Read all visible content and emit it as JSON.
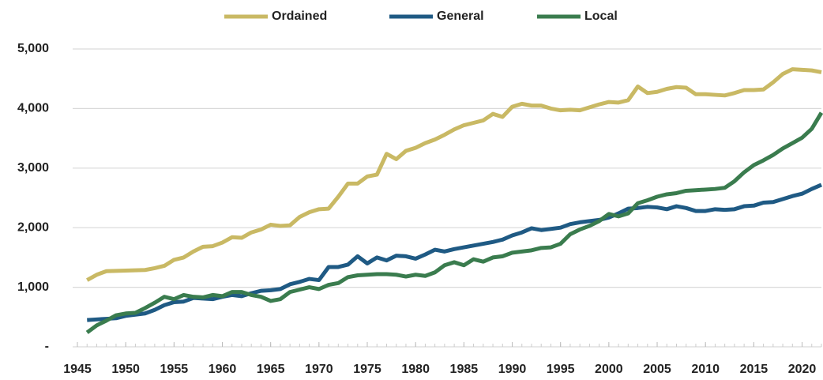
{
  "chart_data": {
    "type": "line",
    "legend": "top",
    "grid": true,
    "x": [
      1946,
      1947,
      1948,
      1949,
      1950,
      1951,
      1952,
      1953,
      1954,
      1955,
      1956,
      1957,
      1958,
      1959,
      1960,
      1961,
      1962,
      1963,
      1964,
      1965,
      1966,
      1967,
      1968,
      1969,
      1970,
      1971,
      1972,
      1973,
      1974,
      1975,
      1976,
      1977,
      1978,
      1979,
      1980,
      1981,
      1982,
      1983,
      1984,
      1985,
      1986,
      1987,
      1988,
      1989,
      1990,
      1991,
      1992,
      1993,
      1994,
      1995,
      1996,
      1997,
      1998,
      1999,
      2000,
      2001,
      2002,
      2003,
      2004,
      2005,
      2006,
      2007,
      2008,
      2009,
      2010,
      2011,
      2012,
      2013,
      2014,
      2015,
      2016,
      2017,
      2018,
      2019,
      2020,
      2021,
      2022
    ],
    "series": [
      {
        "name": "Ordained",
        "color": "#c9b964",
        "values": [
          1120,
          1210,
          1270,
          1275,
          1280,
          1285,
          1290,
          1320,
          1360,
          1460,
          1500,
          1600,
          1680,
          1690,
          1750,
          1840,
          1830,
          1920,
          1970,
          2050,
          2030,
          2040,
          2180,
          2260,
          2310,
          2320,
          2520,
          2740,
          2740,
          2860,
          2890,
          3240,
          3150,
          3290,
          3340,
          3420,
          3480,
          3560,
          3650,
          3720,
          3760,
          3800,
          3910,
          3860,
          4030,
          4080,
          4050,
          4050,
          4000,
          3970,
          3980,
          3970,
          4020,
          4070,
          4110,
          4100,
          4140,
          4370,
          4260,
          4280,
          4330,
          4360,
          4350,
          4240,
          4240,
          4230,
          4220,
          4260,
          4310,
          4310,
          4320,
          4440,
          4580,
          4660,
          4650,
          4640,
          4610
        ]
      },
      {
        "name": "General",
        "color": "#1f5a84",
        "values": [
          450,
          460,
          470,
          480,
          520,
          540,
          560,
          620,
          700,
          750,
          760,
          820,
          810,
          800,
          840,
          870,
          850,
          900,
          940,
          950,
          970,
          1050,
          1090,
          1140,
          1120,
          1340,
          1340,
          1380,
          1520,
          1400,
          1500,
          1450,
          1530,
          1520,
          1480,
          1550,
          1630,
          1600,
          1640,
          1670,
          1700,
          1730,
          1760,
          1800,
          1870,
          1920,
          1990,
          1960,
          1980,
          2000,
          2060,
          2090,
          2110,
          2130,
          2170,
          2240,
          2320,
          2330,
          2350,
          2340,
          2310,
          2360,
          2330,
          2280,
          2280,
          2310,
          2300,
          2310,
          2360,
          2370,
          2420,
          2430,
          2480,
          2530,
          2570,
          2650,
          2720
        ]
      },
      {
        "name": "Local",
        "color": "#3a7c4e",
        "values": [
          240,
          360,
          440,
          530,
          560,
          570,
          650,
          740,
          840,
          800,
          870,
          840,
          830,
          870,
          850,
          920,
          920,
          870,
          840,
          770,
          800,
          920,
          960,
          1000,
          970,
          1040,
          1070,
          1170,
          1200,
          1210,
          1220,
          1220,
          1210,
          1180,
          1210,
          1190,
          1250,
          1370,
          1420,
          1370,
          1470,
          1430,
          1500,
          1520,
          1580,
          1600,
          1620,
          1660,
          1670,
          1730,
          1890,
          1970,
          2030,
          2110,
          2230,
          2190,
          2240,
          2410,
          2460,
          2520,
          2560,
          2580,
          2620,
          2630,
          2640,
          2650,
          2670,
          2780,
          2930,
          3050,
          3130,
          3220,
          3330,
          3420,
          3510,
          3660,
          3930
        ]
      }
    ],
    "xlim": [
      1945,
      2022
    ],
    "xticks": [
      1945,
      1950,
      1955,
      1960,
      1965,
      1970,
      1975,
      1980,
      1985,
      1990,
      1995,
      2000,
      2005,
      2010,
      2015,
      2020
    ],
    "ylim": [
      0,
      5000
    ],
    "yticks": [
      {
        "value": 0,
        "label": "-"
      },
      {
        "value": 1000,
        "label": "1,000"
      },
      {
        "value": 2000,
        "label": "2,000"
      },
      {
        "value": 3000,
        "label": "3,000"
      },
      {
        "value": 4000,
        "label": "4,000"
      },
      {
        "value": 5000,
        "label": "5,000"
      }
    ]
  }
}
